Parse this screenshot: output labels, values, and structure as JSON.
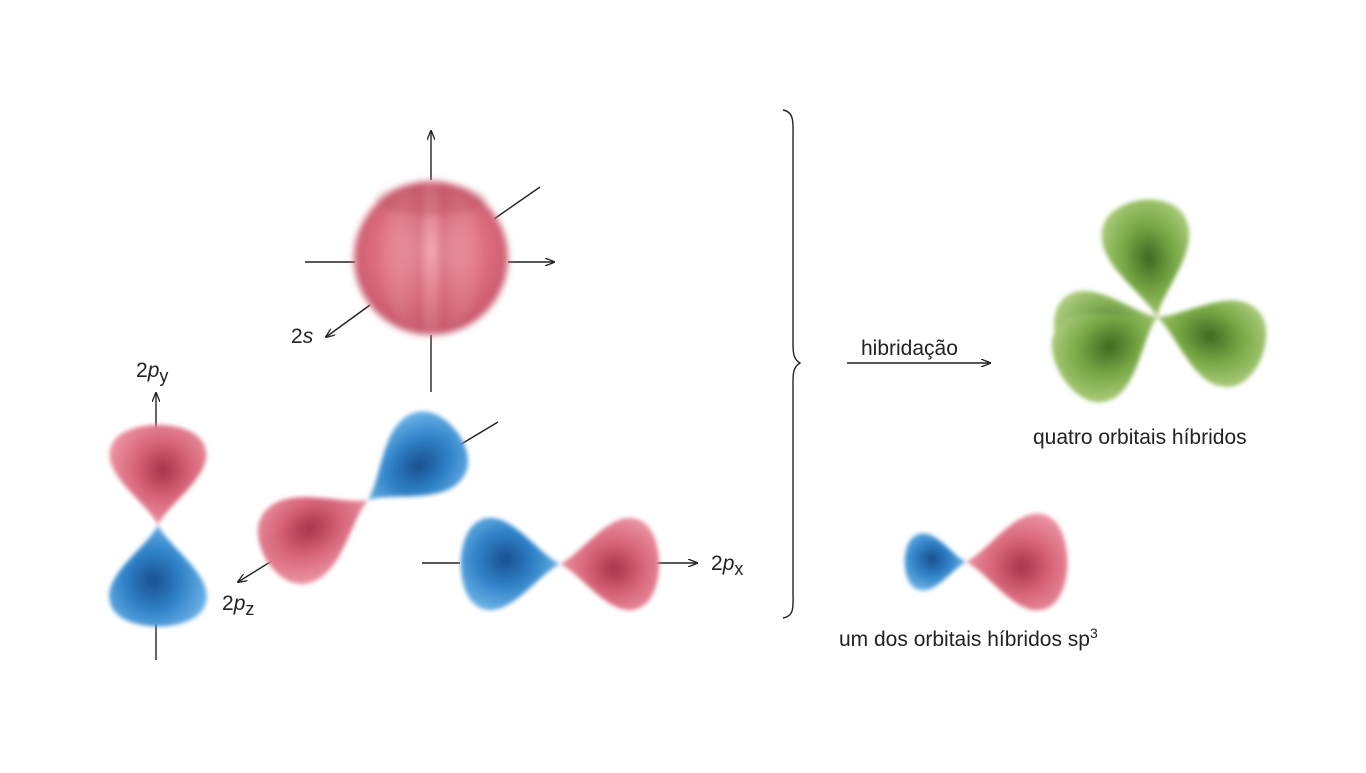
{
  "colors": {
    "red_lobe": "#e0707f",
    "blue_lobe": "#3a8fd6",
    "green_lobe": "#7fae4a",
    "axis": "#222222"
  },
  "orbitals": {
    "s": {
      "prefix": "2",
      "letter": "s"
    },
    "py": {
      "prefix": "2",
      "letter": "p",
      "sub": "y"
    },
    "pz": {
      "prefix": "2",
      "letter": "p",
      "sub": "z"
    },
    "px": {
      "prefix": "2",
      "letter": "p",
      "sub": "x"
    }
  },
  "process_label": "hibridação",
  "result_four": "quatro orbitais híbridos",
  "result_one": {
    "text": "um dos orbitais híbridos sp",
    "sup": "3"
  }
}
